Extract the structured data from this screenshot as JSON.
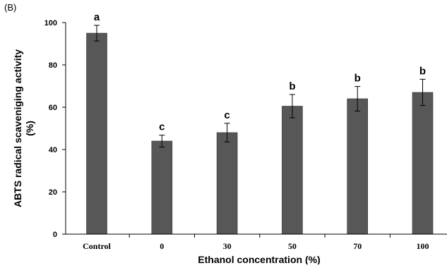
{
  "panel_label": "(B)",
  "chart_data": {
    "type": "bar",
    "categories": [
      "Control",
      "0",
      "30",
      "50",
      "70",
      "100"
    ],
    "values": [
      95,
      44,
      48,
      60.5,
      64,
      67
    ],
    "errors": [
      3.7,
      2.8,
      4.4,
      5.5,
      5.8,
      6.2
    ],
    "significance_labels": [
      "a",
      "c",
      "c",
      "b",
      "b",
      "b"
    ],
    "xlabel": "Ethanol concentration (%)",
    "ylabel": [
      "ABTS radical scaveniging activity",
      "(%)"
    ],
    "ylim": [
      0,
      100
    ],
    "yticks": [
      0,
      20,
      40,
      60,
      80,
      100
    ],
    "grid": false,
    "legend": "none",
    "colors": {
      "bar": "#575757",
      "axis": "#000000"
    }
  }
}
